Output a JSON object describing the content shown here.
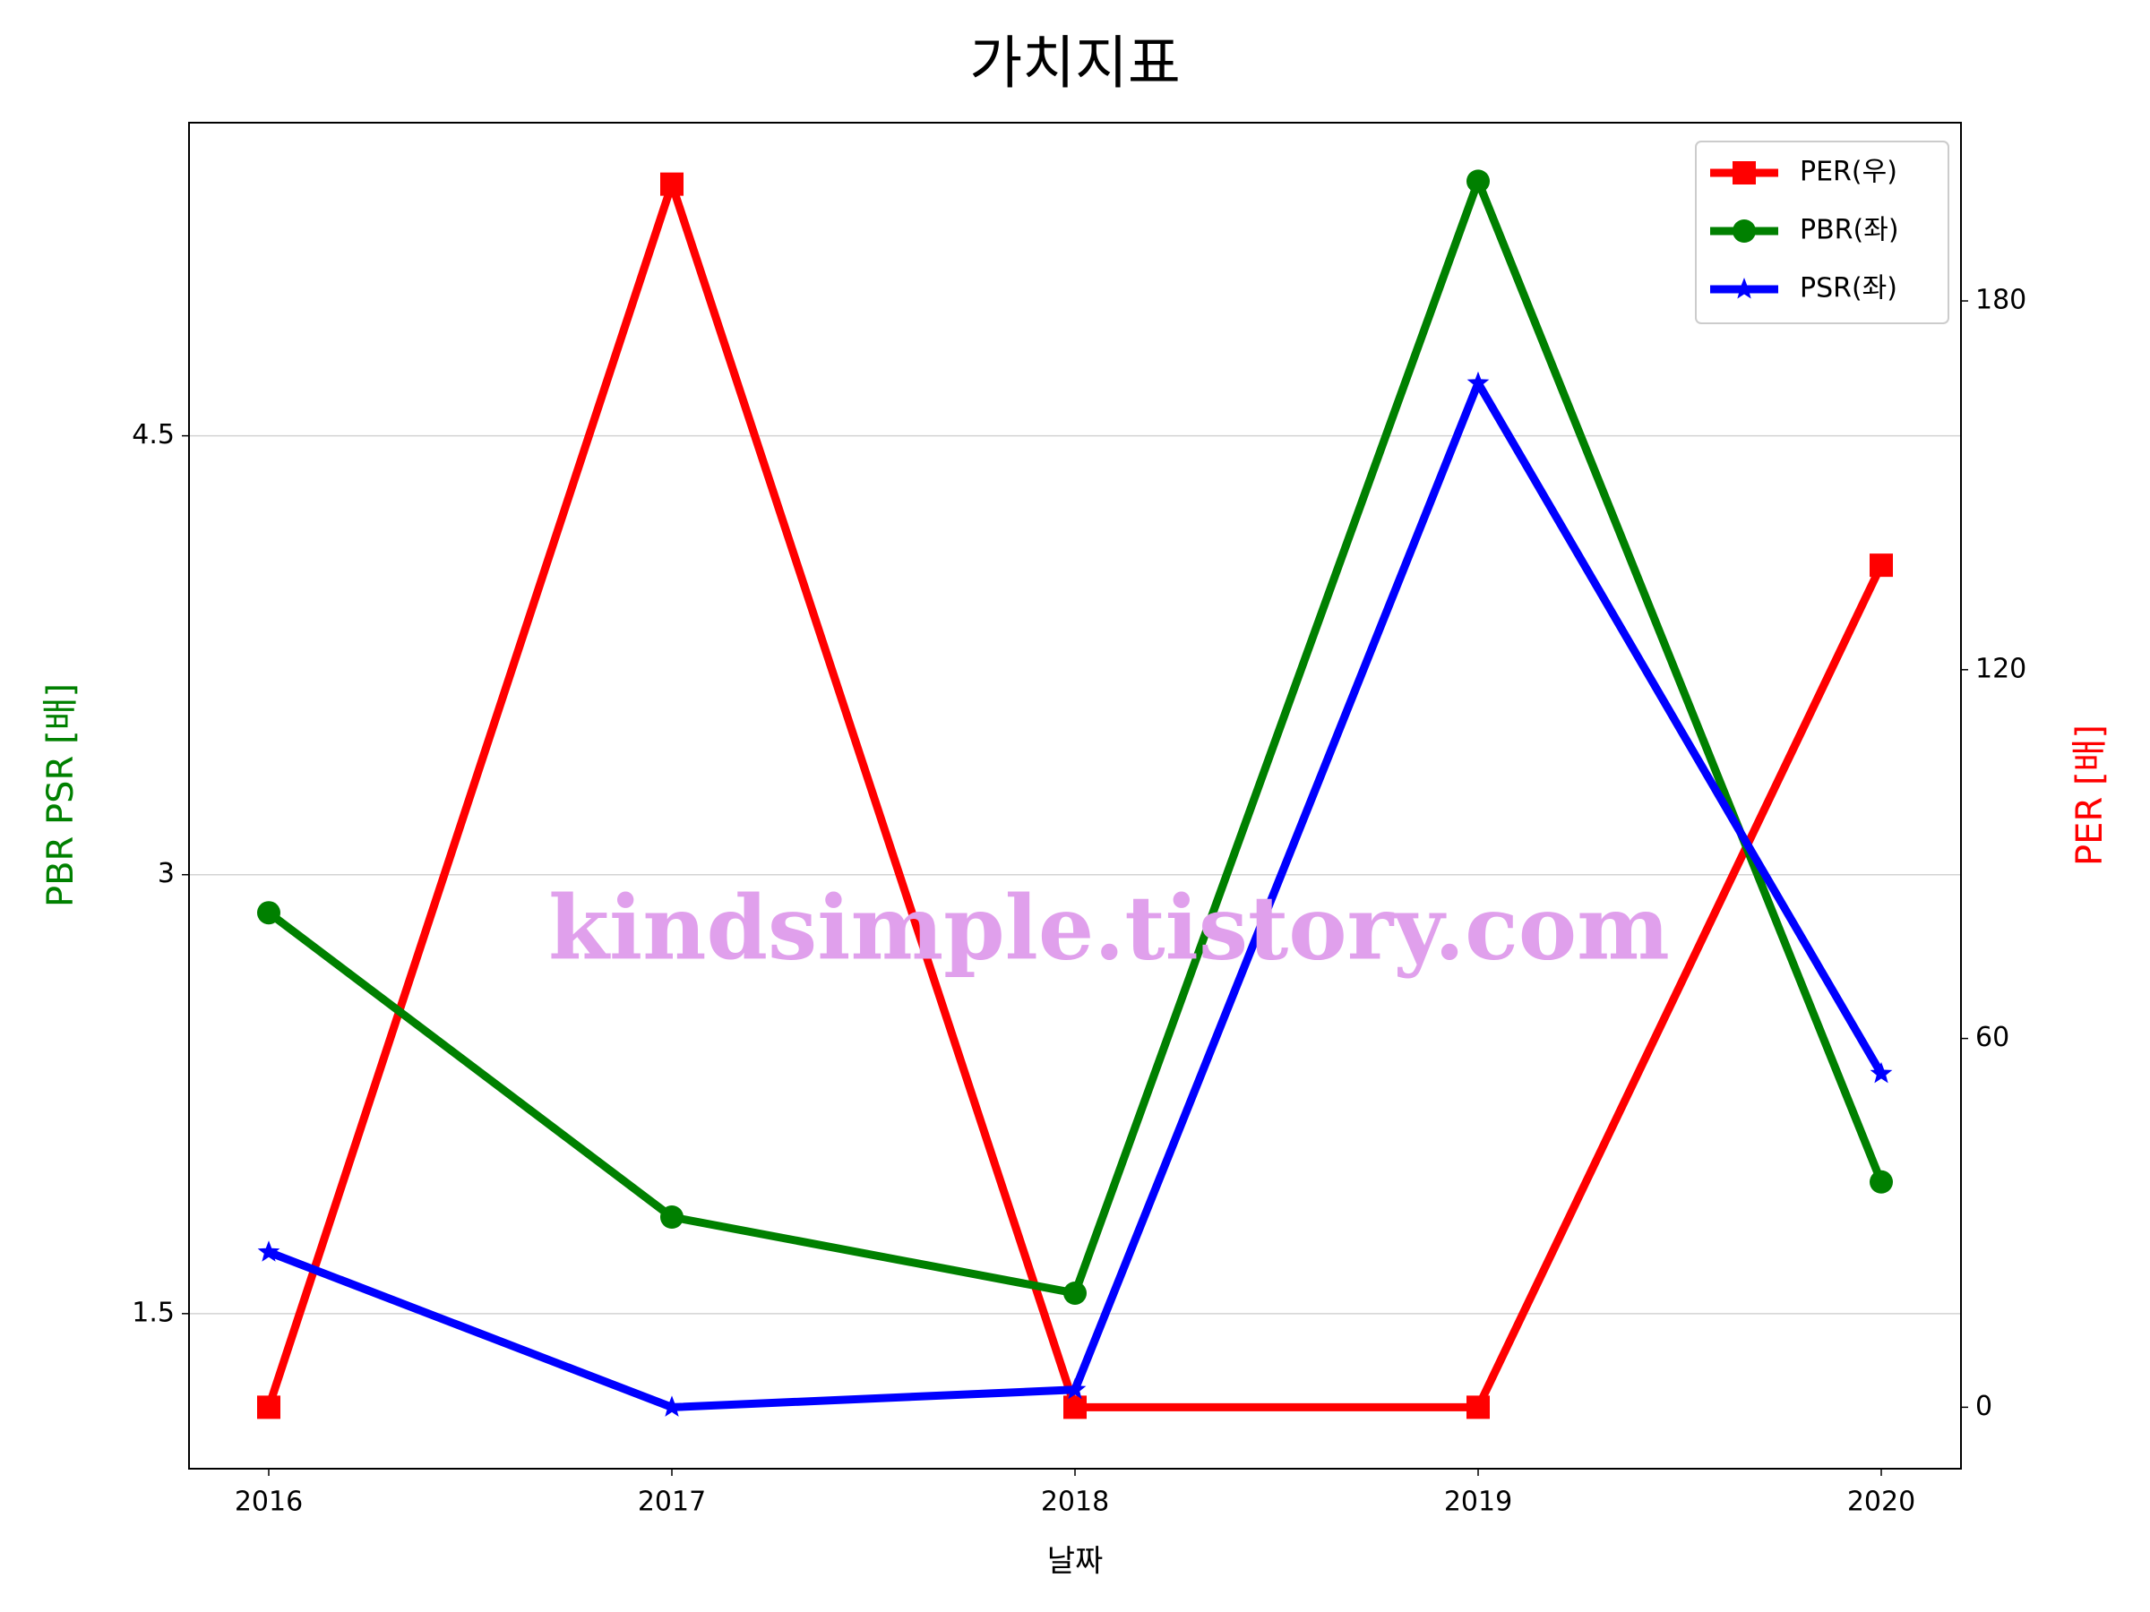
{
  "chart_data": {
    "type": "line",
    "title": "가치지표",
    "x_label": "날짜",
    "y_label": "PBR PSR [배]",
    "y2_label": "PER [배]",
    "y_label_color": "#008000",
    "y2_label_color": "#ff0000",
    "categories": [
      "2016",
      "2017",
      "2018",
      "2019",
      "2020"
    ],
    "series": [
      {
        "name": "PER(우)",
        "color": "#ff0000",
        "marker": "square",
        "axis": "y2",
        "values": [
          0,
          199,
          0,
          0,
          137
        ]
      },
      {
        "name": "PBR(좌)",
        "color": "#008000",
        "marker": "circle",
        "axis": "y",
        "values": [
          2.87,
          1.83,
          1.57,
          5.37,
          1.95
        ]
      },
      {
        "name": "PSR(좌)",
        "color": "#0000ff",
        "marker": "star",
        "axis": "y",
        "values": [
          1.71,
          1.18,
          1.24,
          4.68,
          2.32
        ]
      }
    ],
    "ylim": [
      0.97,
      5.57
    ],
    "yticks": [
      1.5,
      3.0,
      4.5
    ],
    "y2lim": [
      -10,
      209
    ],
    "y2ticks": [
      0,
      60,
      120,
      180
    ],
    "grid": true,
    "legend": "upper right",
    "annotation": "kindsimple.tistory.com"
  }
}
